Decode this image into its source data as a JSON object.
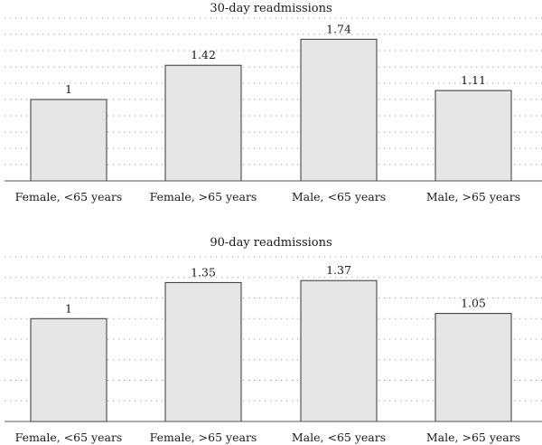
{
  "chart_data": [
    {
      "type": "bar",
      "title": "30-day readmissions",
      "categories": [
        "Female, <65 years",
        "Female, >65 years",
        "Male, <65 years",
        "Male, >65 years"
      ],
      "values": [
        1,
        1.42,
        1.74,
        1.11
      ],
      "data_labels": [
        "1",
        "1.42",
        "1.74",
        "1.11"
      ],
      "ylim": [
        0,
        2.0
      ],
      "grid": true,
      "bar_color": "#e6e6e6"
    },
    {
      "type": "bar",
      "title": "90-day readmissions",
      "categories": [
        "Female, <65 years",
        "Female, >65 years",
        "Male, <65 years",
        "Male, >65 years"
      ],
      "values": [
        1,
        1.35,
        1.37,
        1.05
      ],
      "data_labels": [
        "1",
        "1.35",
        "1.37",
        "1.05"
      ],
      "ylim": [
        0,
        1.6
      ],
      "grid": true,
      "bar_color": "#e6e6e6"
    }
  ]
}
